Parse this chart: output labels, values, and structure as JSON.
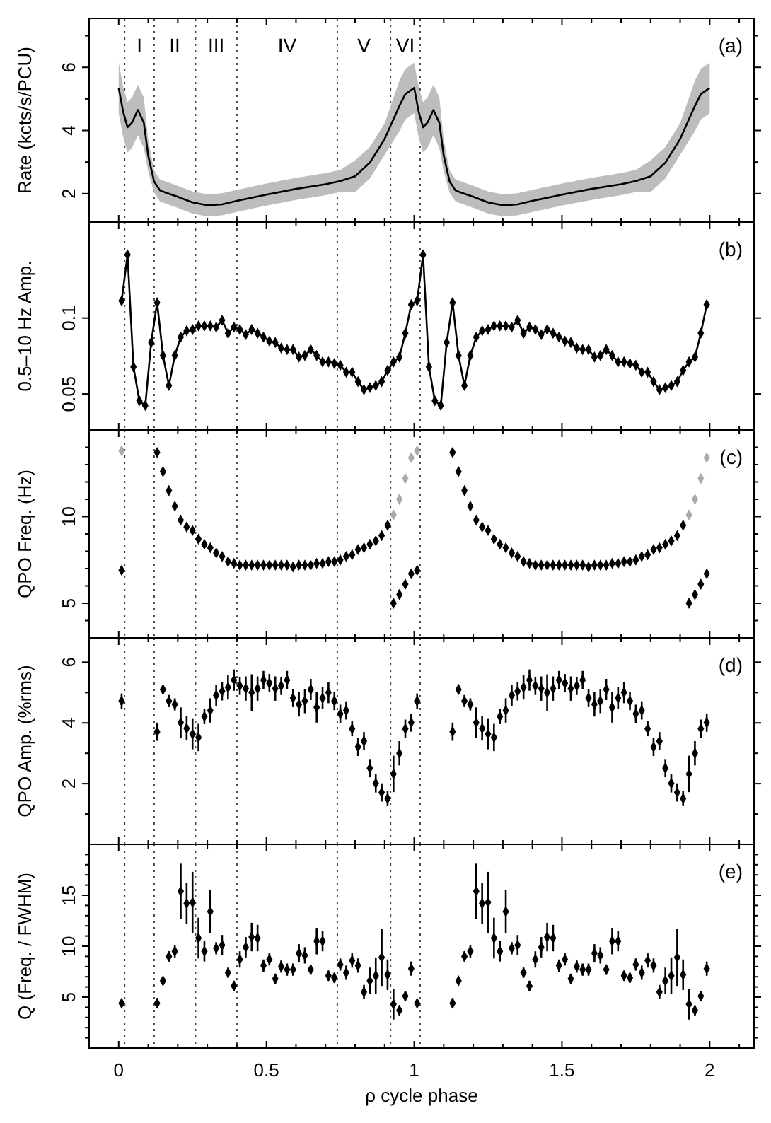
{
  "chart_data": [
    {
      "type": "line",
      "ylabel": "Rate (kcts/s/PCU)",
      "annotations": [
        "(a)",
        "I",
        "II",
        "III",
        "IV",
        "V",
        "VI"
      ],
      "xlim": [
        -0.1,
        2.15
      ],
      "xticks": [
        0,
        {
          "value": 0.1,
          "label": null
        },
        {
          "value": 0.2,
          "label": null
        },
        {
          "value": 0.3,
          "label": null
        },
        {
          "value": 0.4,
          "label": null
        },
        0.5,
        {
          "value": 0.6,
          "label": null
        },
        {
          "value": 0.7,
          "label": null
        },
        {
          "value": 0.8,
          "label": null
        },
        {
          "value": 0.9,
          "label": null
        },
        1,
        {
          "value": 1.1,
          "label": null
        },
        {
          "value": 1.2,
          "label": null
        },
        {
          "value": 1.3,
          "label": null
        },
        {
          "value": 1.4,
          "label": null
        },
        1.5,
        {
          "value": 1.6,
          "label": null
        },
        {
          "value": 1.7,
          "label": null
        },
        {
          "value": 1.8,
          "label": null
        },
        {
          "value": 1.9,
          "label": null
        },
        2,
        {
          "value": 2.1,
          "label": null
        }
      ],
      "ylim": [
        1.1,
        7.55
      ],
      "yticks": [
        2,
        {
          "value": 3,
          "label": null
        },
        4,
        {
          "value": 5,
          "label": null
        },
        6,
        {
          "value": 7,
          "label": null
        }
      ],
      "tick_labels": "y",
      "marker": "none",
      "ref_lines": [
        {
          "axis": "x",
          "value": 0.02,
          "line_style": "dotted"
        },
        {
          "axis": "x",
          "value": 0.12,
          "line_style": "dotted"
        },
        {
          "axis": "x",
          "value": 0.26,
          "line_style": "dotted"
        },
        {
          "axis": "x",
          "value": 0.4,
          "line_style": "dotted"
        },
        {
          "axis": "x",
          "value": 0.74,
          "line_style": "dotted"
        },
        {
          "axis": "x",
          "value": 0.92,
          "line_style": "dotted"
        },
        {
          "axis": "x",
          "value": 1.02,
          "line_style": "dotted"
        }
      ],
      "series": [
        {
          "color": "#000000",
          "x": [
            0,
            0.015,
            0.03,
            0.045,
            0.065,
            0.085,
            0.1,
            0.12,
            0.14,
            0.16,
            0.2,
            0.25,
            0.3,
            0.35,
            0.4,
            0.5,
            0.6,
            0.7,
            0.75,
            0.8,
            0.85,
            0.9,
            0.95,
            0.97,
            1.0,
            1.015,
            1.03,
            1.045,
            1.065,
            1.085,
            1.1,
            1.12,
            1.14,
            1.16,
            1.2,
            1.25,
            1.3,
            1.35,
            1.4,
            1.5,
            1.6,
            1.7,
            1.75,
            1.8,
            1.85,
            1.9,
            1.95,
            1.97,
            2.0
          ],
          "values": [
            5.35,
            4.6,
            4.1,
            4.25,
            4.65,
            4.25,
            3.2,
            2.38,
            2.1,
            2.03,
            1.9,
            1.72,
            1.63,
            1.66,
            1.77,
            1.97,
            2.15,
            2.3,
            2.4,
            2.55,
            2.98,
            3.73,
            4.78,
            5.15,
            5.35,
            4.6,
            4.1,
            4.25,
            4.65,
            4.25,
            3.2,
            2.38,
            2.1,
            2.03,
            1.9,
            1.72,
            1.63,
            1.66,
            1.77,
            1.97,
            2.15,
            2.3,
            2.4,
            2.55,
            2.98,
            3.73,
            4.78,
            5.15,
            5.35
          ],
          "lower": [
            4.55,
            3.8,
            3.3,
            3.45,
            3.85,
            3.45,
            2.7,
            2.03,
            1.75,
            1.68,
            1.55,
            1.37,
            1.28,
            1.31,
            1.42,
            1.62,
            1.8,
            1.95,
            2.05,
            2.05,
            2.48,
            3.23,
            3.98,
            4.35,
            4.55,
            3.8,
            3.3,
            3.45,
            3.85,
            3.45,
            2.7,
            2.03,
            1.75,
            1.68,
            1.55,
            1.37,
            1.28,
            1.31,
            1.42,
            1.62,
            1.8,
            1.95,
            2.05,
            2.05,
            2.48,
            3.23,
            3.98,
            4.35,
            4.55
          ],
          "upper": [
            6.15,
            5.4,
            4.9,
            5.05,
            5.45,
            5.05,
            3.7,
            2.73,
            2.45,
            2.38,
            2.25,
            2.07,
            1.98,
            2.01,
            2.12,
            2.32,
            2.5,
            2.65,
            2.75,
            3.05,
            3.48,
            4.23,
            5.58,
            5.95,
            6.15,
            5.4,
            4.9,
            5.05,
            5.45,
            5.05,
            3.7,
            2.73,
            2.45,
            2.38,
            2.25,
            2.07,
            1.98,
            2.01,
            2.12,
            2.32,
            2.5,
            2.65,
            2.75,
            3.05,
            3.48,
            4.23,
            5.58,
            5.95,
            6.15
          ]
        }
      ]
    },
    {
      "type": "line",
      "ylabel": "0.5–10 Hz Amp.",
      "annotations": [
        "(b)"
      ],
      "log": "y",
      "xlim": [
        -0.1,
        2.15
      ],
      "xticks": [
        0,
        {
          "value": 0.1,
          "label": null
        },
        {
          "value": 0.2,
          "label": null
        },
        {
          "value": 0.3,
          "label": null
        },
        {
          "value": 0.4,
          "label": null
        },
        0.5,
        {
          "value": 0.6,
          "label": null
        },
        {
          "value": 0.7,
          "label": null
        },
        {
          "value": 0.8,
          "label": null
        },
        {
          "value": 0.9,
          "label": null
        },
        1,
        {
          "value": 1.1,
          "label": null
        },
        {
          "value": 1.2,
          "label": null
        },
        {
          "value": 1.3,
          "label": null
        },
        {
          "value": 1.4,
          "label": null
        },
        1.5,
        {
          "value": 1.6,
          "label": null
        },
        {
          "value": 1.7,
          "label": null
        },
        {
          "value": 1.8,
          "label": null
        },
        {
          "value": 1.9,
          "label": null
        },
        2,
        {
          "value": 2.1,
          "label": null
        }
      ],
      "ylim": [
        0.036,
        0.24
      ],
      "yticks": [
        0.05,
        0.1
      ],
      "tick_labels": "y",
      "marker": "diamond",
      "ref_lines": [
        {
          "axis": "x",
          "value": 0.02,
          "line_style": "dotted"
        },
        {
          "axis": "x",
          "value": 0.12,
          "line_style": "dotted"
        },
        {
          "axis": "x",
          "value": 0.26,
          "line_style": "dotted"
        },
        {
          "axis": "x",
          "value": 0.4,
          "line_style": "dotted"
        },
        {
          "axis": "x",
          "value": 0.74,
          "line_style": "dotted"
        },
        {
          "axis": "x",
          "value": 0.92,
          "line_style": "dotted"
        },
        {
          "axis": "x",
          "value": 1.02,
          "line_style": "dotted"
        }
      ],
      "x": [
        0.01,
        0.03,
        0.05,
        0.07,
        0.09,
        0.11,
        0.13,
        0.15,
        0.17,
        0.19,
        0.21,
        0.23,
        0.25,
        0.27,
        0.29,
        0.31,
        0.33,
        0.35,
        0.37,
        0.39,
        0.41,
        0.43,
        0.45,
        0.47,
        0.49,
        0.51,
        0.53,
        0.55,
        0.57,
        0.59,
        0.61,
        0.63,
        0.65,
        0.67,
        0.69,
        0.71,
        0.73,
        0.75,
        0.77,
        0.79,
        0.81,
        0.83,
        0.85,
        0.87,
        0.89,
        0.91,
        0.93,
        0.95,
        0.97,
        0.99,
        1.01,
        1.03,
        1.05,
        1.07,
        1.09,
        1.11,
        1.13,
        1.15,
        1.17,
        1.19,
        1.21,
        1.23,
        1.25,
        1.27,
        1.29,
        1.31,
        1.33,
        1.35,
        1.37,
        1.39,
        1.41,
        1.43,
        1.45,
        1.47,
        1.49,
        1.51,
        1.53,
        1.55,
        1.57,
        1.59,
        1.61,
        1.63,
        1.65,
        1.67,
        1.69,
        1.71,
        1.73,
        1.75,
        1.77,
        1.79,
        1.81,
        1.83,
        1.85,
        1.87,
        1.89,
        1.91,
        1.93,
        1.95,
        1.97,
        1.99
      ],
      "series": [
        {
          "color": "#000000",
          "values": [
            0.117,
            0.178,
            0.064,
            0.047,
            0.045,
            0.08,
            0.115,
            0.071,
            0.054,
            0.071,
            0.084,
            0.089,
            0.09,
            0.093,
            0.093,
            0.093,
            0.092,
            0.098,
            0.087,
            0.092,
            0.09,
            0.086,
            0.09,
            0.087,
            0.084,
            0.081,
            0.08,
            0.076,
            0.075,
            0.075,
            0.07,
            0.071,
            0.075,
            0.071,
            0.067,
            0.067,
            0.066,
            0.065,
            0.061,
            0.061,
            0.056,
            0.052,
            0.053,
            0.054,
            0.056,
            0.062,
            0.067,
            0.07,
            0.087,
            0.113,
            0.117,
            0.178,
            0.064,
            0.047,
            0.045,
            0.08,
            0.115,
            0.071,
            0.054,
            0.071,
            0.084,
            0.089,
            0.09,
            0.093,
            0.093,
            0.093,
            0.092,
            0.098,
            0.087,
            0.092,
            0.09,
            0.086,
            0.09,
            0.087,
            0.084,
            0.081,
            0.08,
            0.076,
            0.075,
            0.075,
            0.07,
            0.071,
            0.075,
            0.071,
            0.067,
            0.067,
            0.066,
            0.065,
            0.061,
            0.061,
            0.056,
            0.052,
            0.053,
            0.054,
            0.056,
            0.062,
            0.067,
            0.07,
            0.087,
            0.113
          ]
        }
      ]
    },
    {
      "type": "scatter",
      "ylabel": "QPO Freq. (Hz)",
      "annotations": [
        "(c)"
      ],
      "xlim": [
        -0.1,
        2.15
      ],
      "xticks": [
        0,
        {
          "value": 0.1,
          "label": null
        },
        {
          "value": 0.2,
          "label": null
        },
        {
          "value": 0.3,
          "label": null
        },
        {
          "value": 0.4,
          "label": null
        },
        0.5,
        {
          "value": 0.6,
          "label": null
        },
        {
          "value": 0.7,
          "label": null
        },
        {
          "value": 0.8,
          "label": null
        },
        {
          "value": 0.9,
          "label": null
        },
        1,
        {
          "value": 1.1,
          "label": null
        },
        {
          "value": 1.2,
          "label": null
        },
        {
          "value": 1.3,
          "label": null
        },
        {
          "value": 1.4,
          "label": null
        },
        1.5,
        {
          "value": 1.6,
          "label": null
        },
        {
          "value": 1.7,
          "label": null
        },
        {
          "value": 1.8,
          "label": null
        },
        {
          "value": 1.9,
          "label": null
        },
        2,
        {
          "value": 2.1,
          "label": null
        }
      ],
      "ylim": [
        3,
        15
      ],
      "yticks": [
        {
          "value": 4,
          "label": null
        },
        5,
        {
          "value": 6,
          "label": null
        },
        {
          "value": 7,
          "label": null
        },
        {
          "value": 8,
          "label": null
        },
        {
          "value": 9,
          "label": null
        },
        10,
        {
          "value": 11,
          "label": null
        },
        {
          "value": 12,
          "label": null
        },
        {
          "value": 13,
          "label": null
        },
        {
          "value": 14,
          "label": null
        }
      ],
      "tick_labels": "y",
      "marker": "diamond",
      "ref_lines": [
        {
          "axis": "x",
          "value": 0.02,
          "line_style": "dotted"
        },
        {
          "axis": "x",
          "value": 0.12,
          "line_style": "dotted"
        },
        {
          "axis": "x",
          "value": 0.26,
          "line_style": "dotted"
        },
        {
          "axis": "x",
          "value": 0.4,
          "line_style": "dotted"
        },
        {
          "axis": "x",
          "value": 0.74,
          "line_style": "dotted"
        },
        {
          "axis": "x",
          "value": 0.92,
          "line_style": "dotted"
        },
        {
          "axis": "x",
          "value": 1.02,
          "line_style": "dotted"
        }
      ],
      "x": [
        0.01,
        0.03,
        0.05,
        0.07,
        0.09,
        0.11,
        0.13,
        0.15,
        0.17,
        0.19,
        0.21,
        0.23,
        0.25,
        0.27,
        0.29,
        0.31,
        0.33,
        0.35,
        0.37,
        0.39,
        0.41,
        0.43,
        0.45,
        0.47,
        0.49,
        0.51,
        0.53,
        0.55,
        0.57,
        0.59,
        0.61,
        0.63,
        0.65,
        0.67,
        0.69,
        0.71,
        0.73,
        0.75,
        0.77,
        0.79,
        0.81,
        0.83,
        0.85,
        0.87,
        0.89,
        0.91,
        0.93,
        0.95,
        0.97,
        0.99,
        1.01,
        1.03,
        1.05,
        1.07,
        1.09,
        1.11,
        1.13,
        1.15,
        1.17,
        1.19,
        1.21,
        1.23,
        1.25,
        1.27,
        1.29,
        1.31,
        1.33,
        1.35,
        1.37,
        1.39,
        1.41,
        1.43,
        1.45,
        1.47,
        1.49,
        1.51,
        1.53,
        1.55,
        1.57,
        1.59,
        1.61,
        1.63,
        1.65,
        1.67,
        1.69,
        1.71,
        1.73,
        1.75,
        1.77,
        1.79,
        1.81,
        1.83,
        1.85,
        1.87,
        1.89,
        1.91,
        1.93,
        1.95,
        1.97,
        1.99
      ],
      "series": [
        {
          "color": "#000000",
          "values": [
            6.9,
            null,
            null,
            null,
            null,
            null,
            13.7,
            12.6,
            11.5,
            10.6,
            9.8,
            9.4,
            9.2,
            8.7,
            8.4,
            8.2,
            7.9,
            7.7,
            7.4,
            7.3,
            7.2,
            7.2,
            7.2,
            7.2,
            7.2,
            7.2,
            7.2,
            7.2,
            7.2,
            7.1,
            7.2,
            7.2,
            7.2,
            7.3,
            7.3,
            7.4,
            7.4,
            7.5,
            7.7,
            7.8,
            8.1,
            8.2,
            8.4,
            8.6,
            8.9,
            9.5,
            5.0,
            5.5,
            6.1,
            6.7,
            6.9,
            null,
            null,
            null,
            null,
            null,
            13.7,
            12.6,
            11.5,
            10.6,
            9.8,
            9.4,
            9.2,
            8.7,
            8.4,
            8.2,
            7.9,
            7.7,
            7.4,
            7.3,
            7.2,
            7.2,
            7.2,
            7.2,
            7.2,
            7.2,
            7.2,
            7.2,
            7.2,
            7.1,
            7.2,
            7.2,
            7.2,
            7.3,
            7.3,
            7.4,
            7.4,
            7.5,
            7.7,
            7.8,
            8.1,
            8.2,
            8.4,
            8.6,
            8.9,
            9.5,
            5.0,
            5.5,
            6.1,
            6.7
          ]
        },
        {
          "color": "#aaaaaa",
          "values": [
            13.8,
            null,
            null,
            null,
            null,
            null,
            null,
            null,
            null,
            null,
            null,
            null,
            null,
            null,
            null,
            null,
            null,
            null,
            null,
            null,
            null,
            null,
            null,
            null,
            null,
            null,
            null,
            null,
            null,
            null,
            null,
            null,
            null,
            null,
            null,
            null,
            null,
            null,
            null,
            null,
            null,
            null,
            null,
            null,
            null,
            null,
            10.1,
            11.0,
            12.2,
            13.4,
            13.8,
            null,
            null,
            null,
            null,
            null,
            null,
            null,
            null,
            null,
            null,
            null,
            null,
            null,
            null,
            null,
            null,
            null,
            null,
            null,
            null,
            null,
            null,
            null,
            null,
            null,
            null,
            null,
            null,
            null,
            null,
            null,
            null,
            null,
            null,
            null,
            null,
            null,
            null,
            null,
            null,
            null,
            null,
            null,
            null,
            null,
            10.1,
            11.0,
            12.2,
            13.4
          ]
        }
      ]
    },
    {
      "type": "scatter",
      "ylabel": "QPO Amp. (%rms)",
      "annotations": [
        "(d)"
      ],
      "xlim": [
        -0.1,
        2.15
      ],
      "xticks": [
        0,
        {
          "value": 0.1,
          "label": null
        },
        {
          "value": 0.2,
          "label": null
        },
        {
          "value": 0.3,
          "label": null
        },
        {
          "value": 0.4,
          "label": null
        },
        0.5,
        {
          "value": 0.6,
          "label": null
        },
        {
          "value": 0.7,
          "label": null
        },
        {
          "value": 0.8,
          "label": null
        },
        {
          "value": 0.9,
          "label": null
        },
        1,
        {
          "value": 1.1,
          "label": null
        },
        {
          "value": 1.2,
          "label": null
        },
        {
          "value": 1.3,
          "label": null
        },
        {
          "value": 1.4,
          "label": null
        },
        1.5,
        {
          "value": 1.6,
          "label": null
        },
        {
          "value": 1.7,
          "label": null
        },
        {
          "value": 1.8,
          "label": null
        },
        {
          "value": 1.9,
          "label": null
        },
        2,
        {
          "value": 2.1,
          "label": null
        }
      ],
      "ylim": [
        0,
        6.8
      ],
      "yticks": [
        {
          "value": 1,
          "label": null
        },
        2,
        {
          "value": 3,
          "label": null
        },
        4,
        {
          "value": 5,
          "label": null
        },
        6
      ],
      "tick_labels": "y",
      "marker": "diamond",
      "ref_lines": [
        {
          "axis": "x",
          "value": 0.02,
          "line_style": "dotted"
        },
        {
          "axis": "x",
          "value": 0.12,
          "line_style": "dotted"
        },
        {
          "axis": "x",
          "value": 0.26,
          "line_style": "dotted"
        },
        {
          "axis": "x",
          "value": 0.4,
          "line_style": "dotted"
        },
        {
          "axis": "x",
          "value": 0.74,
          "line_style": "dotted"
        },
        {
          "axis": "x",
          "value": 0.92,
          "line_style": "dotted"
        },
        {
          "axis": "x",
          "value": 1.02,
          "line_style": "dotted"
        }
      ],
      "x": [
        0.01,
        0.03,
        0.05,
        0.07,
        0.09,
        0.11,
        0.13,
        0.15,
        0.17,
        0.19,
        0.21,
        0.23,
        0.25,
        0.27,
        0.29,
        0.31,
        0.33,
        0.35,
        0.37,
        0.39,
        0.41,
        0.43,
        0.45,
        0.47,
        0.49,
        0.51,
        0.53,
        0.55,
        0.57,
        0.59,
        0.61,
        0.63,
        0.65,
        0.67,
        0.69,
        0.71,
        0.73,
        0.75,
        0.77,
        0.79,
        0.81,
        0.83,
        0.85,
        0.87,
        0.89,
        0.91,
        0.93,
        0.95,
        0.97,
        0.99,
        1.01,
        1.03,
        1.05,
        1.07,
        1.09,
        1.11,
        1.13,
        1.15,
        1.17,
        1.19,
        1.21,
        1.23,
        1.25,
        1.27,
        1.29,
        1.31,
        1.33,
        1.35,
        1.37,
        1.39,
        1.41,
        1.43,
        1.45,
        1.47,
        1.49,
        1.51,
        1.53,
        1.55,
        1.57,
        1.59,
        1.61,
        1.63,
        1.65,
        1.67,
        1.69,
        1.71,
        1.73,
        1.75,
        1.77,
        1.79,
        1.81,
        1.83,
        1.85,
        1.87,
        1.89,
        1.91,
        1.93,
        1.95,
        1.97,
        1.99
      ],
      "series": [
        {
          "color": "#000000",
          "values": [
            4.72,
            null,
            null,
            null,
            null,
            null,
            3.71,
            5.1,
            4.72,
            4.61,
            4.01,
            3.82,
            3.63,
            3.52,
            4.21,
            4.41,
            4.91,
            5.04,
            5.17,
            5.41,
            5.22,
            5.13,
            5.0,
            5.13,
            5.41,
            5.31,
            5.13,
            5.22,
            5.41,
            4.82,
            4.61,
            4.72,
            5.1,
            4.51,
            4.82,
            5.0,
            4.72,
            4.3,
            4.41,
            3.81,
            3.21,
            3.4,
            2.51,
            2.01,
            1.71,
            1.51,
            2.32,
            3.0,
            3.81,
            4.01,
            4.72,
            null,
            null,
            null,
            null,
            null,
            3.71,
            5.1,
            4.72,
            4.61,
            4.01,
            3.82,
            3.63,
            3.52,
            4.21,
            4.41,
            4.91,
            5.04,
            5.17,
            5.41,
            5.22,
            5.13,
            5.0,
            5.13,
            5.41,
            5.31,
            5.13,
            5.22,
            5.41,
            4.82,
            4.61,
            4.72,
            5.1,
            4.51,
            4.82,
            5.0,
            4.72,
            4.3,
            4.41,
            3.81,
            3.21,
            3.4,
            2.51,
            2.01,
            1.71,
            1.51,
            2.32,
            3.0,
            3.81,
            4.01
          ],
          "errors": [
            0.25,
            null,
            null,
            null,
            null,
            null,
            0.3,
            0.15,
            0.2,
            0.2,
            0.5,
            0.4,
            0.5,
            0.45,
            0.25,
            0.4,
            0.35,
            0.3,
            0.4,
            0.35,
            0.3,
            0.4,
            0.6,
            0.4,
            0.3,
            0.3,
            0.4,
            0.3,
            0.3,
            0.3,
            0.4,
            0.4,
            0.35,
            0.5,
            0.35,
            0.35,
            0.3,
            0.3,
            0.3,
            0.25,
            0.3,
            0.3,
            0.3,
            0.3,
            0.3,
            0.25,
            0.6,
            0.4,
            0.3,
            0.3,
            0.25,
            null,
            null,
            null,
            null,
            null,
            0.3,
            0.15,
            0.2,
            0.2,
            0.5,
            0.4,
            0.5,
            0.45,
            0.25,
            0.4,
            0.35,
            0.3,
            0.4,
            0.35,
            0.3,
            0.4,
            0.6,
            0.4,
            0.3,
            0.3,
            0.4,
            0.3,
            0.3,
            0.3,
            0.4,
            0.4,
            0.35,
            0.5,
            0.35,
            0.35,
            0.3,
            0.3,
            0.3,
            0.25,
            0.3,
            0.3,
            0.3,
            0.3,
            0.3,
            0.25,
            0.6,
            0.4,
            0.3,
            0.3
          ]
        }
      ]
    },
    {
      "type": "scatter",
      "ylabel": "Q (Freq. / FWHM)",
      "xlabel": "ρ cycle phase",
      "annotations": [
        "(e)"
      ],
      "xlim": [
        -0.1,
        2.15
      ],
      "xticks": [
        0,
        {
          "value": 0.1,
          "label": null
        },
        {
          "value": 0.2,
          "label": null
        },
        {
          "value": 0.3,
          "label": null
        },
        {
          "value": 0.4,
          "label": null
        },
        0.5,
        {
          "value": 0.6,
          "label": null
        },
        {
          "value": 0.7,
          "label": null
        },
        {
          "value": 0.8,
          "label": null
        },
        {
          "value": 0.9,
          "label": null
        },
        1,
        {
          "value": 1.1,
          "label": null
        },
        {
          "value": 1.2,
          "label": null
        },
        {
          "value": 1.3,
          "label": null
        },
        {
          "value": 1.4,
          "label": null
        },
        1.5,
        {
          "value": 1.6,
          "label": null
        },
        {
          "value": 1.7,
          "label": null
        },
        {
          "value": 1.8,
          "label": null
        },
        {
          "value": 1.9,
          "label": null
        },
        2,
        {
          "value": 2.1,
          "label": null
        }
      ],
      "ylim": [
        0,
        20
      ],
      "yticks": [
        {
          "value": 1,
          "label": null
        },
        {
          "value": 2,
          "label": null
        },
        {
          "value": 3,
          "label": null
        },
        {
          "value": 4,
          "label": null
        },
        5,
        {
          "value": 6,
          "label": null
        },
        {
          "value": 7,
          "label": null
        },
        {
          "value": 8,
          "label": null
        },
        {
          "value": 9,
          "label": null
        },
        10,
        {
          "value": 11,
          "label": null
        },
        {
          "value": 12,
          "label": null
        },
        {
          "value": 13,
          "label": null
        },
        {
          "value": 14,
          "label": null
        },
        15,
        {
          "value": 16,
          "label": null
        },
        {
          "value": 17,
          "label": null
        },
        {
          "value": 18,
          "label": null
        },
        {
          "value": 19,
          "label": null
        }
      ],
      "marker": "diamond",
      "ref_lines": [
        {
          "axis": "x",
          "value": 0.02,
          "line_style": "dotted"
        },
        {
          "axis": "x",
          "value": 0.12,
          "line_style": "dotted"
        },
        {
          "axis": "x",
          "value": 0.26,
          "line_style": "dotted"
        },
        {
          "axis": "x",
          "value": 0.4,
          "line_style": "dotted"
        },
        {
          "axis": "x",
          "value": 0.74,
          "line_style": "dotted"
        },
        {
          "axis": "x",
          "value": 0.92,
          "line_style": "dotted"
        },
        {
          "axis": "x",
          "value": 1.02,
          "line_style": "dotted"
        }
      ],
      "x": [
        0.01,
        0.03,
        0.05,
        0.07,
        0.09,
        0.11,
        0.13,
        0.15,
        0.17,
        0.19,
        0.21,
        0.23,
        0.25,
        0.27,
        0.29,
        0.31,
        0.33,
        0.35,
        0.37,
        0.39,
        0.41,
        0.43,
        0.45,
        0.47,
        0.49,
        0.51,
        0.53,
        0.55,
        0.57,
        0.59,
        0.61,
        0.63,
        0.65,
        0.67,
        0.69,
        0.71,
        0.73,
        0.75,
        0.77,
        0.79,
        0.81,
        0.83,
        0.85,
        0.87,
        0.89,
        0.91,
        0.93,
        0.95,
        0.97,
        0.99,
        1.01,
        1.03,
        1.05,
        1.07,
        1.09,
        1.11,
        1.13,
        1.15,
        1.17,
        1.19,
        1.21,
        1.23,
        1.25,
        1.27,
        1.29,
        1.31,
        1.33,
        1.35,
        1.37,
        1.39,
        1.41,
        1.43,
        1.45,
        1.47,
        1.49,
        1.51,
        1.53,
        1.55,
        1.57,
        1.59,
        1.61,
        1.63,
        1.65,
        1.67,
        1.69,
        1.71,
        1.73,
        1.75,
        1.77,
        1.79,
        1.81,
        1.83,
        1.85,
        1.87,
        1.89,
        1.91,
        1.93,
        1.95,
        1.97,
        1.99
      ],
      "series": [
        {
          "color": "#000000",
          "values": [
            4.4,
            null,
            null,
            null,
            null,
            null,
            4.4,
            6.6,
            9.0,
            9.5,
            15.4,
            14.2,
            14.3,
            10.8,
            9.5,
            13.4,
            9.8,
            10.1,
            7.4,
            6.1,
            8.7,
            9.9,
            10.9,
            10.8,
            8.1,
            8.7,
            6.8,
            8.0,
            7.7,
            7.7,
            9.3,
            9.1,
            7.7,
            10.5,
            10.5,
            7.1,
            6.9,
            8.2,
            7.4,
            8.6,
            8.1,
            5.5,
            6.6,
            7.1,
            8.9,
            7.2,
            4.3,
            3.7,
            5.1,
            7.8,
            4.4,
            null,
            null,
            null,
            null,
            null,
            4.4,
            6.6,
            9.0,
            9.5,
            15.4,
            14.2,
            14.3,
            10.8,
            9.5,
            13.4,
            9.8,
            10.1,
            7.4,
            6.1,
            8.7,
            9.9,
            10.9,
            10.8,
            8.1,
            8.7,
            6.8,
            8.0,
            7.7,
            7.7,
            9.3,
            9.1,
            7.7,
            10.5,
            10.5,
            7.1,
            6.9,
            8.2,
            7.4,
            8.6,
            8.1,
            5.5,
            6.6,
            7.1,
            8.9,
            7.2,
            4.3,
            3.7,
            5.1,
            7.8
          ],
          "errors": [
            0.3,
            null,
            null,
            null,
            null,
            null,
            0.5,
            0.4,
            0.5,
            0.6,
            2.7,
            2.0,
            3.0,
            2.0,
            1.0,
            2.1,
            0.6,
            1.0,
            0.5,
            0.5,
            0.8,
            1.0,
            1.4,
            1.3,
            0.6,
            0.6,
            0.5,
            0.6,
            0.6,
            0.6,
            0.9,
            0.8,
            0.5,
            1.3,
            1.0,
            0.5,
            0.5,
            0.6,
            0.7,
            0.7,
            0.7,
            0.7,
            1.3,
            1.8,
            2.8,
            1.5,
            1.5,
            0.5,
            0.5,
            0.7,
            0.3,
            null,
            null,
            null,
            null,
            null,
            0.5,
            0.4,
            0.5,
            0.6,
            2.7,
            2.0,
            3.0,
            2.0,
            1.0,
            2.1,
            0.6,
            1.0,
            0.5,
            0.5,
            0.8,
            1.0,
            1.4,
            1.3,
            0.6,
            0.6,
            0.5,
            0.6,
            0.6,
            0.6,
            0.9,
            0.8,
            0.5,
            1.3,
            1.0,
            0.5,
            0.5,
            0.6,
            0.7,
            0.7,
            0.7,
            0.7,
            1.3,
            1.8,
            2.8,
            1.5,
            1.5,
            0.5,
            0.5,
            0.7
          ]
        }
      ]
    }
  ]
}
